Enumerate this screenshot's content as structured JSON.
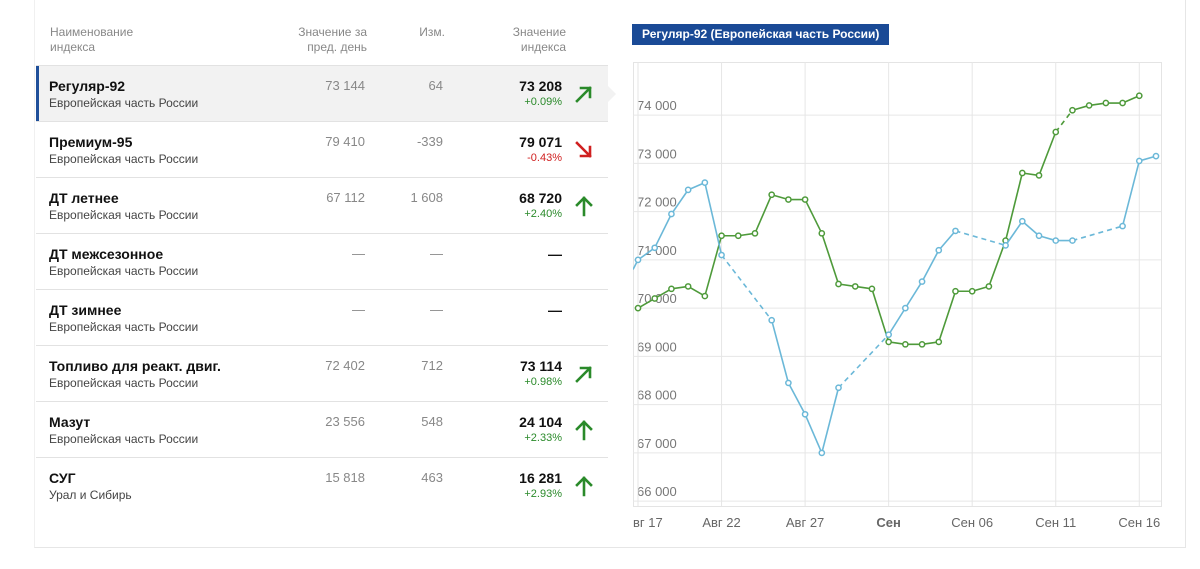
{
  "table": {
    "headers": {
      "name": "Наименование индекса",
      "prev": "Значение за пред. день",
      "change": "Изм.",
      "value": "Значение индекса"
    },
    "rows": [
      {
        "name": "Регуляр-92",
        "region": "Европейская часть России",
        "prev": "73 144",
        "change": "64",
        "value": "73 208",
        "pct": "+0.09%",
        "trend": "up-right",
        "selected": true
      },
      {
        "name": "Премиум-95",
        "region": "Европейская часть России",
        "prev": "79 410",
        "change": "-339",
        "value": "79 071",
        "pct": "-0.43%",
        "trend": "down-right",
        "selected": false
      },
      {
        "name": "ДТ летнее",
        "region": "Европейская часть России",
        "prev": "67 112",
        "change": "1 608",
        "value": "68 720",
        "pct": "+2.40%",
        "trend": "up",
        "selected": false
      },
      {
        "name": "ДТ межсезонное",
        "region": "Европейская часть России",
        "prev": "—",
        "change": "—",
        "value": "—",
        "pct": "",
        "trend": "none",
        "selected": false
      },
      {
        "name": "ДТ зимнее",
        "region": "Европейская часть России",
        "prev": "—",
        "change": "—",
        "value": "—",
        "pct": "",
        "trend": "none",
        "selected": false
      },
      {
        "name": "Топливо для реакт. двиг.",
        "region": "Европейская часть России",
        "prev": "72 402",
        "change": "712",
        "value": "73 114",
        "pct": "+0.98%",
        "trend": "up-right",
        "selected": false
      },
      {
        "name": "Мазут",
        "region": "Европейская часть России",
        "prev": "23 556",
        "change": "548",
        "value": "24 104",
        "pct": "+2.33%",
        "trend": "up",
        "selected": false
      },
      {
        "name": "СУГ",
        "region": "Урал и Сибирь",
        "prev": "15 818",
        "change": "463",
        "value": "16 281",
        "pct": "+2.93%",
        "trend": "up",
        "selected": false
      }
    ]
  },
  "colors": {
    "up": "#2a8a2a",
    "down": "#d02020",
    "green_series": "#4e9a3a",
    "blue_series": "#6bb8d8",
    "badge": "#1a4a96"
  },
  "chart_data": {
    "type": "line",
    "title": "Регуляр-92 (Европейская часть России)",
    "x_ticks": [
      "вг 17",
      "Авг 22",
      "Авг 27",
      "Сен",
      "Сен 06",
      "Сен 11",
      "Сен 16"
    ],
    "x_tick_days": [
      17,
      22,
      27,
      32,
      37,
      42,
      47
    ],
    "x_range": [
      16.7,
      48.3
    ],
    "ylim": [
      65900,
      75100
    ],
    "y_ticks": [
      66000,
      67000,
      68000,
      69000,
      70000,
      71000,
      72000,
      73000,
      74000
    ],
    "y_tick_labels": [
      "66 000",
      "67 000",
      "68 000",
      "69 000",
      "70 000",
      "71 000",
      "72 000",
      "73 000",
      "74 000"
    ],
    "grid": true,
    "series": [
      {
        "color": "green",
        "points": [
          [
            17,
            70000
          ],
          [
            18,
            70200
          ],
          [
            19,
            70400
          ],
          [
            20,
            70450
          ],
          [
            21,
            70250
          ],
          [
            22,
            71500
          ],
          [
            23,
            71500
          ],
          [
            24,
            71550
          ],
          [
            25,
            72350
          ],
          [
            26,
            72250
          ],
          [
            27,
            72250
          ],
          [
            28,
            71550
          ],
          [
            29,
            70500
          ],
          [
            30,
            70450
          ],
          [
            31,
            70400
          ],
          [
            32,
            69300
          ],
          [
            33,
            69250
          ],
          [
            34,
            69250
          ],
          [
            35,
            69300
          ],
          [
            36,
            70350
          ],
          [
            37,
            70350
          ],
          [
            38,
            70450
          ],
          [
            39,
            71400
          ],
          [
            40,
            72800
          ],
          [
            41,
            72750
          ],
          [
            42,
            73650
          ],
          [
            43,
            74100
          ],
          [
            44,
            74200
          ],
          [
            45,
            74250
          ],
          [
            46,
            74250
          ],
          [
            47,
            74400
          ]
        ],
        "gaps_after": [
          42
        ]
      },
      {
        "color": "blue",
        "points": [
          [
            16.7,
            70800
          ],
          [
            17,
            71000
          ],
          [
            18,
            71250
          ],
          [
            19,
            71950
          ],
          [
            20,
            72450
          ],
          [
            21,
            72600
          ],
          [
            22,
            71100
          ],
          [
            25,
            69750
          ],
          [
            26,
            68450
          ],
          [
            27,
            67800
          ],
          [
            28,
            67000
          ],
          [
            29,
            68350
          ],
          [
            32,
            69450
          ],
          [
            33,
            70000
          ],
          [
            34,
            70550
          ],
          [
            35,
            71200
          ],
          [
            36,
            71600
          ],
          [
            39,
            71300
          ],
          [
            40,
            71800
          ],
          [
            41,
            71500
          ],
          [
            42,
            71400
          ],
          [
            43,
            71400
          ],
          [
            46,
            71700
          ],
          [
            47,
            73050
          ],
          [
            48,
            73150
          ]
        ],
        "gaps_after": [
          22,
          29,
          36,
          43
        ]
      }
    ]
  }
}
